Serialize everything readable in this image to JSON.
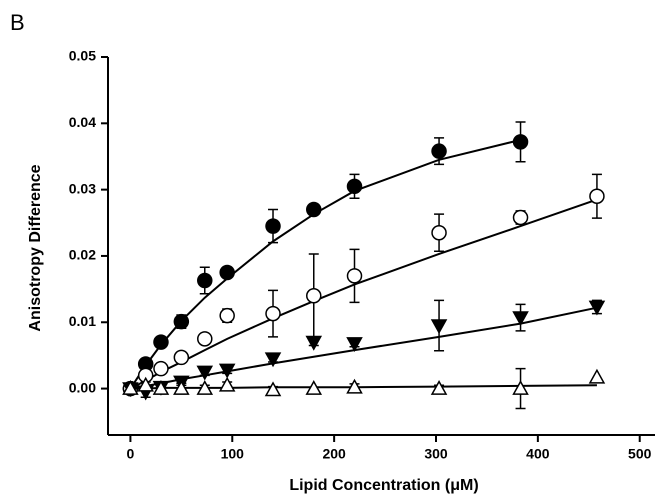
{
  "panel_label": "B",
  "chart_data": {
    "type": "scatter",
    "xlabel": "Lipid Concentration (μM)",
    "ylabel": "Anisotropy Difference",
    "xlim": [
      -22,
      515
    ],
    "ylim": [
      -0.007,
      0.05
    ],
    "xticks": [
      0,
      100,
      200,
      300,
      400,
      500
    ],
    "yticks": [
      {
        "value": 0,
        "label": "0.00"
      },
      0.01,
      0.02,
      0.03,
      0.04,
      0.05
    ],
    "series": [
      {
        "marker": "circle-filled",
        "color": "#000000",
        "x": [
          0,
          15,
          30,
          50,
          73,
          95,
          140,
          180,
          220,
          303,
          383
        ],
        "values": [
          0,
          0.0037,
          0.007,
          0.0101,
          0.0163,
          0.0175,
          0.0245,
          0.027,
          0.0305,
          0.0358,
          0.0372
        ],
        "errors": [
          0,
          0.0005,
          0.0005,
          0.001,
          0.002,
          0.0005,
          0.0025,
          0.0005,
          0.0018,
          0.002,
          0.003
        ],
        "fit_values": [
          0,
          0.0035,
          0.0066,
          0.0102,
          0.0137,
          0.0166,
          0.0222,
          0.0263,
          0.0298,
          0.0345,
          0.0375
        ]
      },
      {
        "marker": "circle-open",
        "color": "#000000",
        "x": [
          0,
          15,
          30,
          50,
          73,
          95,
          140,
          180,
          220,
          303,
          383,
          458
        ],
        "values": [
          0,
          0.002,
          0.003,
          0.0047,
          0.0075,
          0.011,
          0.0113,
          0.014,
          0.017,
          0.0235,
          0.0258,
          0.029
        ],
        "errors": [
          0,
          0.0005,
          0.0005,
          0.0005,
          0.0005,
          0.001,
          0.0035,
          0.0063,
          0.004,
          0.0028,
          0.001,
          0.0033
        ],
        "fit_values": [
          0,
          0.0012,
          0.0025,
          0.004,
          0.0058,
          0.0075,
          0.0106,
          0.0132,
          0.0157,
          0.0203,
          0.0245,
          0.0285
        ]
      },
      {
        "marker": "triangle-down-filled",
        "color": "#000000",
        "x": [
          0,
          15,
          30,
          50,
          73,
          95,
          140,
          180,
          220,
          303,
          383,
          458
        ],
        "values": [
          0,
          -0.0005,
          0.0002,
          0.001,
          0.0025,
          0.0028,
          0.0045,
          0.007,
          0.0068,
          0.0095,
          0.0107,
          0.0123
        ],
        "errors": [
          0,
          0.0008,
          0.0005,
          0.0005,
          0.0005,
          0.0005,
          0.0005,
          0.0005,
          0.0005,
          0.0038,
          0.002,
          0.001
        ],
        "fit_values": [
          0,
          0.0004,
          0.0008,
          0.0014,
          0.002,
          0.0026,
          0.0038,
          0.0048,
          0.0058,
          0.0078,
          0.0098,
          0.0122
        ]
      },
      {
        "marker": "triangle-up-open",
        "color": "#000000",
        "x": [
          0,
          15,
          30,
          50,
          73,
          95,
          140,
          180,
          220,
          303,
          383,
          458
        ],
        "values": [
          0,
          0.0005,
          0,
          0,
          0,
          0.0005,
          -0.0002,
          0,
          0.0002,
          0,
          0,
          0.0017
        ],
        "errors": [
          0,
          0.0005,
          0.0008,
          0.0008,
          0.0005,
          0.0005,
          0.0005,
          0,
          0.0005,
          0.0005,
          0.003,
          0
        ],
        "fit_values": [
          0,
          0,
          0.0001,
          0.0001,
          0.0001,
          0.0001,
          0.0002,
          0.0002,
          0.0002,
          0.0003,
          0.0004,
          0.0005
        ]
      }
    ]
  }
}
